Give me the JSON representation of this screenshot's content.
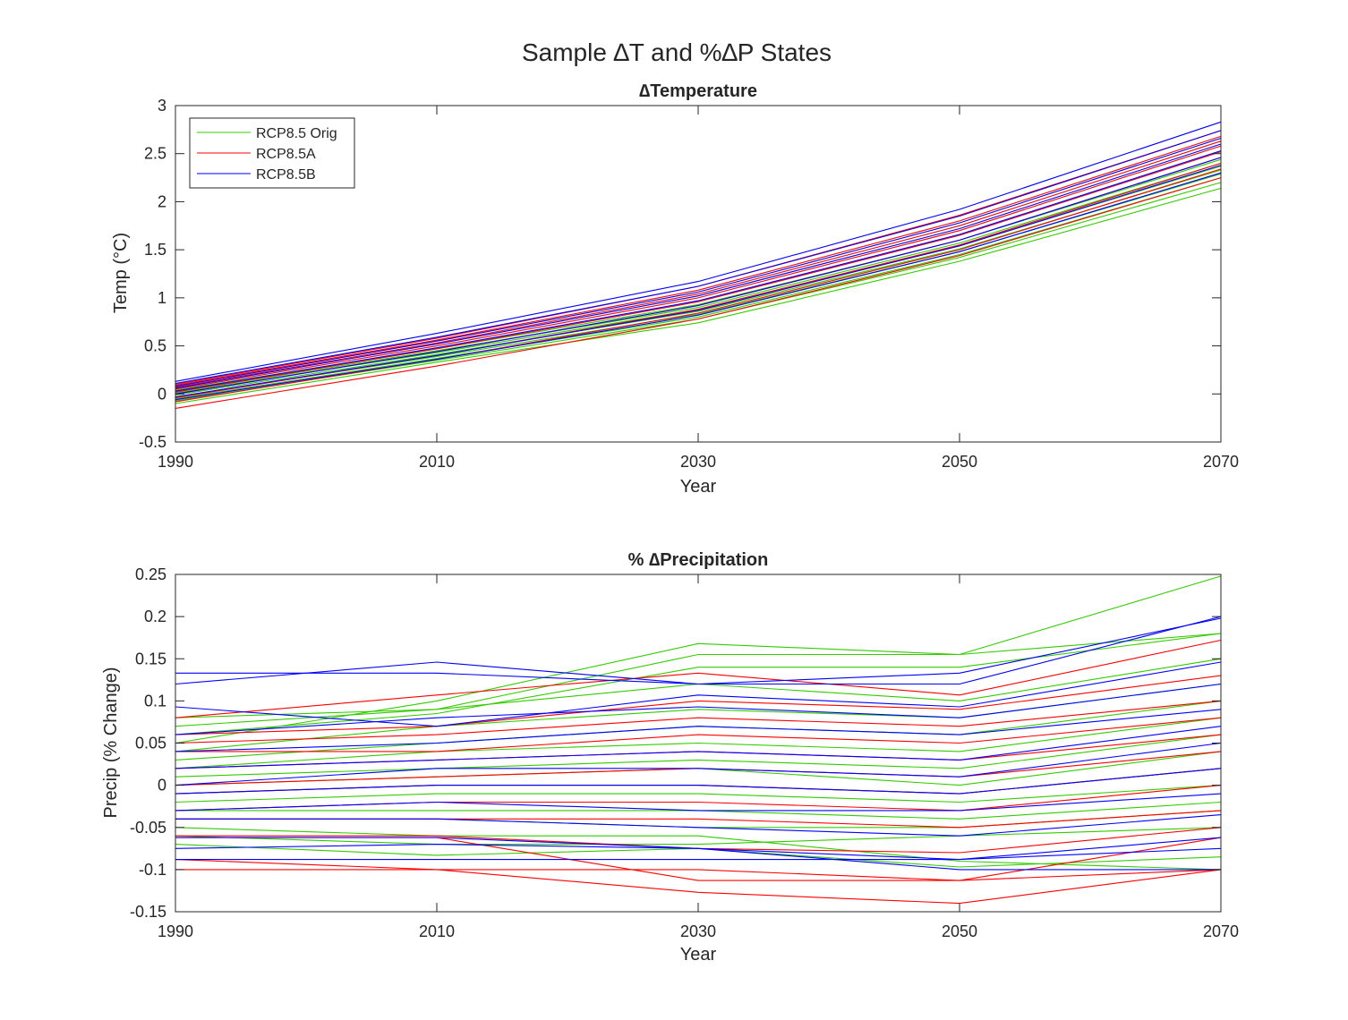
{
  "figure": {
    "suptitle": "Sample ∆T and %∆P States"
  },
  "legend": {
    "placement": "top-left",
    "entries": [
      {
        "label": "RCP8.5 Orig",
        "color": "#33cc00"
      },
      {
        "label": "RCP8.5A",
        "color": "#ff0000"
      },
      {
        "label": "RCP8.5B",
        "color": "#0000ff"
      }
    ]
  },
  "chart_data": [
    {
      "type": "line",
      "title": "∆Temperature",
      "xlabel": "Year",
      "ylabel": "Temp (°C)",
      "xlim": [
        1990,
        2070
      ],
      "ylim": [
        -0.5,
        3
      ],
      "xticks": [
        "1990",
        "2010",
        "2030",
        "2050",
        "2070"
      ],
      "yticks": [
        "-0.5",
        "0",
        "0.5",
        "1",
        "1.5",
        "2",
        "2.5",
        "3"
      ],
      "grid": false,
      "x": [
        1990,
        2010,
        2030,
        2050,
        2070
      ],
      "series": [
        {
          "group": "RCP8.5 Orig",
          "color": "#33cc00",
          "values": [
            -0.1,
            0.33,
            0.74,
            1.38,
            2.14
          ]
        },
        {
          "group": "RCP8.5 Orig",
          "color": "#33cc00",
          "values": [
            -0.07,
            0.35,
            0.78,
            1.42,
            2.2
          ]
        },
        {
          "group": "RCP8.5 Orig",
          "color": "#33cc00",
          "values": [
            -0.05,
            0.37,
            0.8,
            1.45,
            2.25
          ]
        },
        {
          "group": "RCP8.5 Orig",
          "color": "#33cc00",
          "values": [
            -0.03,
            0.39,
            0.83,
            1.48,
            2.29
          ]
        },
        {
          "group": "RCP8.5 Orig",
          "color": "#33cc00",
          "values": [
            -0.01,
            0.41,
            0.86,
            1.51,
            2.33
          ]
        },
        {
          "group": "RCP8.5 Orig",
          "color": "#33cc00",
          "values": [
            0.01,
            0.43,
            0.88,
            1.54,
            2.37
          ]
        },
        {
          "group": "RCP8.5 Orig",
          "color": "#33cc00",
          "values": [
            0.02,
            0.45,
            0.9,
            1.57,
            2.4
          ]
        },
        {
          "group": "RCP8.5 Orig",
          "color": "#33cc00",
          "values": [
            0.04,
            0.47,
            0.93,
            1.6,
            2.44
          ]
        },
        {
          "group": "RCP8.5A",
          "color": "#ff0000",
          "values": [
            -0.15,
            0.29,
            0.78,
            1.44,
            2.25
          ]
        },
        {
          "group": "RCP8.5A",
          "color": "#ff0000",
          "values": [
            -0.08,
            0.36,
            0.84,
            1.5,
            2.34
          ]
        },
        {
          "group": "RCP8.5A",
          "color": "#ff0000",
          "values": [
            -0.04,
            0.4,
            0.88,
            1.55,
            2.4
          ]
        },
        {
          "group": "RCP8.5A",
          "color": "#ff0000",
          "values": [
            0.0,
            0.44,
            0.92,
            1.6,
            2.46
          ]
        },
        {
          "group": "RCP8.5A",
          "color": "#ff0000",
          "values": [
            0.02,
            0.47,
            0.96,
            1.65,
            2.52
          ]
        },
        {
          "group": "RCP8.5A",
          "color": "#ff0000",
          "values": [
            0.05,
            0.5,
            1.0,
            1.7,
            2.58
          ]
        },
        {
          "group": "RCP8.5A",
          "color": "#ff0000",
          "values": [
            0.07,
            0.53,
            1.04,
            1.75,
            2.63
          ]
        },
        {
          "group": "RCP8.5A",
          "color": "#ff0000",
          "values": [
            0.09,
            0.56,
            1.08,
            1.8,
            2.68
          ]
        },
        {
          "group": "RCP8.5A",
          "color": "#ff0000",
          "values": [
            0.1,
            0.58,
            1.12,
            1.86,
            2.74
          ]
        },
        {
          "group": "RCP8.5B",
          "color": "#0000ff",
          "values": [
            -0.06,
            0.36,
            0.82,
            1.48,
            2.3
          ]
        },
        {
          "group": "RCP8.5B",
          "color": "#0000ff",
          "values": [
            -0.03,
            0.4,
            0.87,
            1.54,
            2.38
          ]
        },
        {
          "group": "RCP8.5B",
          "color": "#0000ff",
          "values": [
            0.0,
            0.44,
            0.92,
            1.6,
            2.46
          ]
        },
        {
          "group": "RCP8.5B",
          "color": "#0000ff",
          "values": [
            0.03,
            0.48,
            0.97,
            1.66,
            2.53
          ]
        },
        {
          "group": "RCP8.5B",
          "color": "#0000ff",
          "values": [
            0.06,
            0.52,
            1.02,
            1.72,
            2.6
          ]
        },
        {
          "group": "RCP8.5B",
          "color": "#0000ff",
          "values": [
            0.08,
            0.55,
            1.06,
            1.78,
            2.66
          ]
        },
        {
          "group": "RCP8.5B",
          "color": "#0000ff",
          "values": [
            0.11,
            0.59,
            1.12,
            1.85,
            2.74
          ]
        },
        {
          "group": "RCP8.5B",
          "color": "#0000ff",
          "values": [
            0.13,
            0.63,
            1.17,
            1.92,
            2.83
          ]
        }
      ]
    },
    {
      "type": "line",
      "title": "% ∆Precipitation",
      "xlabel": "Year",
      "ylabel": "Precip (% Change)",
      "xlim": [
        1990,
        2070
      ],
      "ylim": [
        -0.15,
        0.25
      ],
      "xticks": [
        "1990",
        "2010",
        "2030",
        "2050",
        "2070"
      ],
      "yticks": [
        "-0.15",
        "-0.1",
        "-0.05",
        "0",
        "0.05",
        "0.1",
        "0.15",
        "0.2",
        "0.25"
      ],
      "grid": false,
      "x": [
        1990,
        2010,
        2030,
        2050,
        2070
      ],
      "series": [
        {
          "group": "RCP8.5 Orig",
          "color": "#33cc00",
          "values": [
            0.05,
            0.1,
            0.168,
            0.155,
            0.248
          ]
        },
        {
          "group": "RCP8.5 Orig",
          "color": "#33cc00",
          "values": [
            0.07,
            0.09,
            0.155,
            0.155,
            0.18
          ]
        },
        {
          "group": "RCP8.5 Orig",
          "color": "#33cc00",
          "values": [
            0.06,
            0.085,
            0.14,
            0.14,
            0.18
          ]
        },
        {
          "group": "RCP8.5 Orig",
          "color": "#33cc00",
          "values": [
            0.08,
            0.09,
            0.12,
            0.1,
            0.15
          ]
        },
        {
          "group": "RCP8.5 Orig",
          "color": "#33cc00",
          "values": [
            0.04,
            0.07,
            0.09,
            0.08,
            0.12
          ]
        },
        {
          "group": "RCP8.5 Orig",
          "color": "#33cc00",
          "values": [
            0.03,
            0.05,
            0.07,
            0.06,
            0.1
          ]
        },
        {
          "group": "RCP8.5 Orig",
          "color": "#33cc00",
          "values": [
            0.02,
            0.04,
            0.05,
            0.04,
            0.08
          ]
        },
        {
          "group": "RCP8.5 Orig",
          "color": "#33cc00",
          "values": [
            0.01,
            0.02,
            0.03,
            0.02,
            0.06
          ]
        },
        {
          "group": "RCP8.5 Orig",
          "color": "#33cc00",
          "values": [
            0.0,
            0.01,
            0.02,
            0.0,
            0.04
          ]
        },
        {
          "group": "RCP8.5 Orig",
          "color": "#33cc00",
          "values": [
            -0.01,
            0.0,
            0.0,
            -0.01,
            0.02
          ]
        },
        {
          "group": "RCP8.5 Orig",
          "color": "#33cc00",
          "values": [
            -0.02,
            -0.01,
            -0.01,
            -0.02,
            0.0
          ]
        },
        {
          "group": "RCP8.5 Orig",
          "color": "#33cc00",
          "values": [
            -0.03,
            -0.03,
            -0.03,
            -0.04,
            -0.02
          ]
        },
        {
          "group": "RCP8.5 Orig",
          "color": "#33cc00",
          "values": [
            -0.04,
            -0.04,
            -0.05,
            -0.05,
            -0.03
          ]
        },
        {
          "group": "RCP8.5 Orig",
          "color": "#33cc00",
          "values": [
            -0.06,
            -0.07,
            -0.07,
            -0.06,
            -0.05
          ]
        },
        {
          "group": "RCP8.5 Orig",
          "color": "#33cc00",
          "values": [
            -0.07,
            -0.083,
            -0.075,
            -0.097,
            -0.085
          ]
        },
        {
          "group": "RCP8.5 Orig",
          "color": "#33cc00",
          "values": [
            -0.05,
            -0.06,
            -0.06,
            -0.09,
            -0.1
          ]
        },
        {
          "group": "RCP8.5A",
          "color": "#ff0000",
          "values": [
            0.08,
            0.107,
            0.133,
            0.107,
            0.172
          ]
        },
        {
          "group": "RCP8.5A",
          "color": "#ff0000",
          "values": [
            0.06,
            0.07,
            0.1,
            0.09,
            0.13
          ]
        },
        {
          "group": "RCP8.5A",
          "color": "#ff0000",
          "values": [
            0.05,
            0.06,
            0.08,
            0.07,
            0.1
          ]
        },
        {
          "group": "RCP8.5A",
          "color": "#ff0000",
          "values": [
            0.04,
            0.04,
            0.06,
            0.05,
            0.08
          ]
        },
        {
          "group": "RCP8.5A",
          "color": "#ff0000",
          "values": [
            0.02,
            0.03,
            0.04,
            0.03,
            0.06
          ]
        },
        {
          "group": "RCP8.5A",
          "color": "#ff0000",
          "values": [
            0.0,
            0.01,
            0.02,
            0.01,
            0.04
          ]
        },
        {
          "group": "RCP8.5A",
          "color": "#ff0000",
          "values": [
            -0.01,
            0.0,
            0.0,
            -0.01,
            0.02
          ]
        },
        {
          "group": "RCP8.5A",
          "color": "#ff0000",
          "values": [
            -0.03,
            -0.02,
            -0.02,
            -0.03,
            0.0
          ]
        },
        {
          "group": "RCP8.5A",
          "color": "#ff0000",
          "values": [
            -0.04,
            -0.04,
            -0.04,
            -0.05,
            -0.03
          ]
        },
        {
          "group": "RCP8.5A",
          "color": "#ff0000",
          "values": [
            -0.06,
            -0.06,
            -0.075,
            -0.08,
            -0.05
          ]
        },
        {
          "group": "RCP8.5A",
          "color": "#ff0000",
          "values": [
            -0.088,
            -0.1,
            -0.1,
            -0.113,
            -0.1
          ]
        },
        {
          "group": "RCP8.5A",
          "color": "#ff0000",
          "values": [
            -0.1,
            -0.1,
            -0.127,
            -0.14,
            -0.1
          ]
        },
        {
          "group": "RCP8.5A",
          "color": "#ff0000",
          "values": [
            -0.062,
            -0.062,
            -0.113,
            -0.113,
            -0.062
          ]
        },
        {
          "group": "RCP8.5B",
          "color": "#0000ff",
          "values": [
            0.133,
            0.133,
            0.12,
            0.12,
            0.2
          ]
        },
        {
          "group": "RCP8.5B",
          "color": "#0000ff",
          "values": [
            0.12,
            0.146,
            0.12,
            0.133,
            0.198
          ]
        },
        {
          "group": "RCP8.5B",
          "color": "#0000ff",
          "values": [
            0.093,
            0.07,
            0.107,
            0.093,
            0.146
          ]
        },
        {
          "group": "RCP8.5B",
          "color": "#0000ff",
          "values": [
            0.06,
            0.08,
            0.093,
            0.08,
            0.12
          ]
        },
        {
          "group": "RCP8.5B",
          "color": "#0000ff",
          "values": [
            0.04,
            0.05,
            0.07,
            0.06,
            0.09
          ]
        },
        {
          "group": "RCP8.5B",
          "color": "#0000ff",
          "values": [
            0.02,
            0.03,
            0.04,
            0.03,
            0.07
          ]
        },
        {
          "group": "RCP8.5B",
          "color": "#0000ff",
          "values": [
            0.0,
            0.02,
            0.02,
            0.01,
            0.05
          ]
        },
        {
          "group": "RCP8.5B",
          "color": "#0000ff",
          "values": [
            -0.01,
            0.0,
            0.0,
            -0.01,
            0.02
          ]
        },
        {
          "group": "RCP8.5B",
          "color": "#0000ff",
          "values": [
            -0.03,
            -0.02,
            -0.03,
            -0.03,
            -0.01
          ]
        },
        {
          "group": "RCP8.5B",
          "color": "#0000ff",
          "values": [
            -0.04,
            -0.04,
            -0.05,
            -0.06,
            -0.035
          ]
        },
        {
          "group": "RCP8.5B",
          "color": "#0000ff",
          "values": [
            -0.062,
            -0.062,
            -0.075,
            -0.088,
            -0.062
          ]
        },
        {
          "group": "RCP8.5B",
          "color": "#0000ff",
          "values": [
            -0.088,
            -0.088,
            -0.088,
            -0.088,
            -0.075
          ]
        },
        {
          "group": "RCP8.5B",
          "color": "#0000ff",
          "values": [
            -0.075,
            -0.07,
            -0.075,
            -0.1,
            -0.1
          ]
        }
      ]
    }
  ]
}
